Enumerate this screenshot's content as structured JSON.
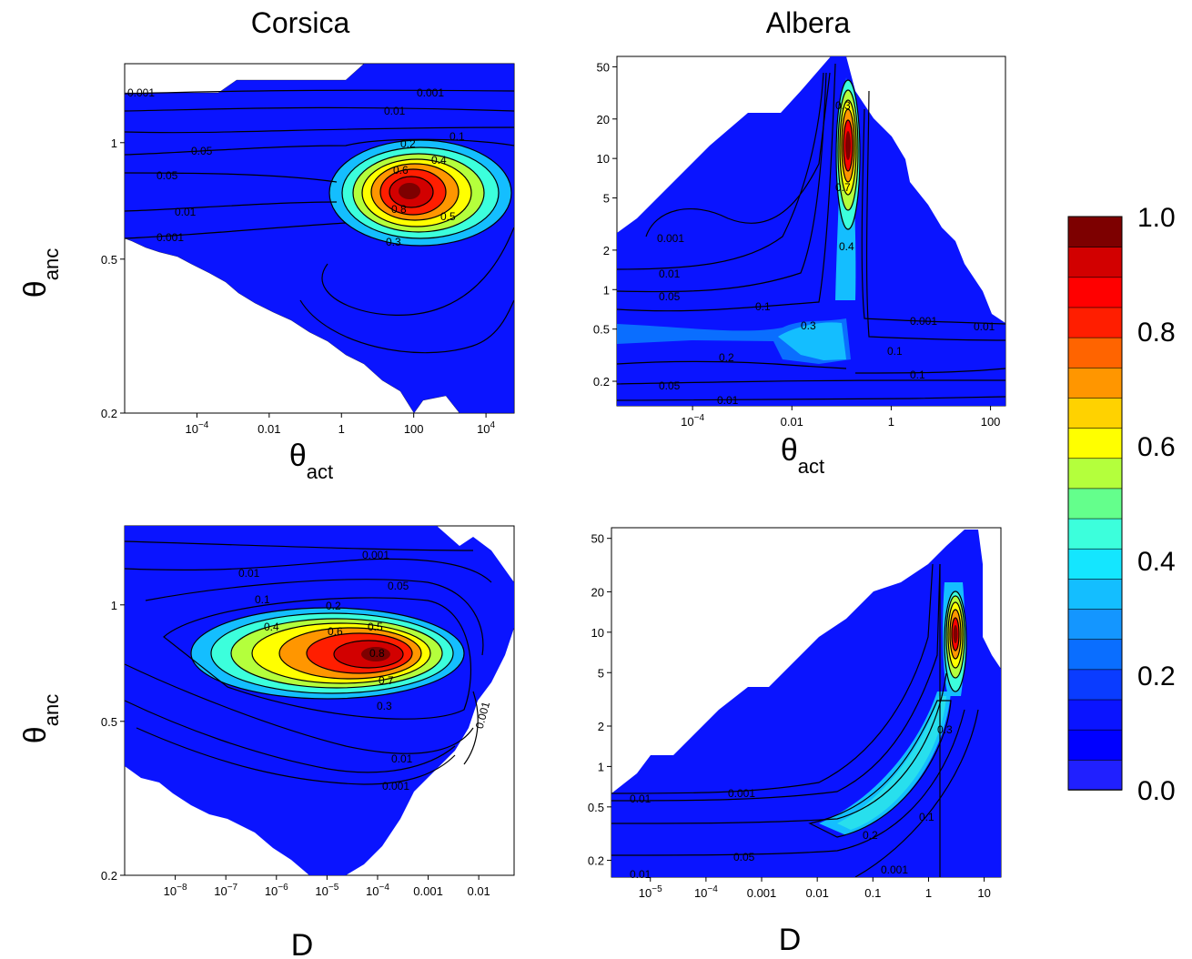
{
  "colors": {
    "colorbar": [
      "#2020ff",
      "#0000ff",
      "#0a14ff",
      "#0a3cff",
      "#0a6eff",
      "#1496ff",
      "#14beff",
      "#14e6ff",
      "#3cffdc",
      "#64ff8c",
      "#b4ff3c",
      "#ffff00",
      "#ffd200",
      "#ff9600",
      "#ff6400",
      "#ff1e00",
      "#ff0000",
      "#d20000",
      "#7d0000"
    ],
    "background_field": "#0a14ff",
    "contour_line": "#000000"
  },
  "colorbar": {
    "labels": [
      "1.0",
      "0.8",
      "0.6",
      "0.4",
      "0.2",
      "0.0"
    ],
    "range": [
      0,
      1
    ]
  },
  "chart_data": [
    {
      "type": "heatmap",
      "title": "Corsica",
      "xlabel_main": "θ",
      "xlabel_sub": "act",
      "ylabel_main": "θ",
      "ylabel_sub": "anc",
      "x_scale": "log",
      "y_scale": "log",
      "xlim": [
        1e-06,
        60000
      ],
      "ylim": [
        0.2,
        1.6
      ],
      "x_ticks": [
        {
          "value": 0.0001,
          "base": "10",
          "exp": "−4"
        },
        {
          "value": 0.01,
          "base": "0.01",
          "exp": ""
        },
        {
          "value": 1,
          "base": "1",
          "exp": ""
        },
        {
          "value": 100,
          "base": "100",
          "exp": ""
        },
        {
          "value": 10000,
          "base": "10",
          "exp": "4"
        }
      ],
      "y_ticks": [
        {
          "value": 0.2,
          "label": "0.2"
        },
        {
          "value": 0.5,
          "label": "0.5"
        },
        {
          "value": 1,
          "label": "1"
        }
      ],
      "peak": {
        "x": 60,
        "y": 0.72,
        "value": 1.0
      },
      "contour_labels": [
        "0.001",
        "0.001",
        "0.01",
        "0.05",
        "0.05",
        "0.01",
        "0.001",
        "0.2",
        "0.1",
        "0.4",
        "0.6",
        "0.8",
        "0.5",
        "0.3"
      ]
    },
    {
      "type": "heatmap",
      "title": "Albera",
      "xlabel_main": "θ",
      "xlabel_sub": "act",
      "ylabel_main": "",
      "ylabel_sub": "",
      "x_scale": "log",
      "y_scale": "log",
      "xlim": [
        3e-06,
        200
      ],
      "ylim": [
        0.13,
        60
      ],
      "x_ticks": [
        {
          "value": 0.0001,
          "base": "10",
          "exp": "−4"
        },
        {
          "value": 0.01,
          "base": "0.01",
          "exp": ""
        },
        {
          "value": 1,
          "base": "1",
          "exp": ""
        },
        {
          "value": 100,
          "base": "100",
          "exp": ""
        }
      ],
      "y_ticks": [
        {
          "value": 0.2,
          "label": "0.2"
        },
        {
          "value": 0.5,
          "label": "0.5"
        },
        {
          "value": 1,
          "label": "1"
        },
        {
          "value": 2,
          "label": "2"
        },
        {
          "value": 5,
          "label": "5"
        },
        {
          "value": 10,
          "label": "10"
        },
        {
          "value": 20,
          "label": "20"
        },
        {
          "value": 50,
          "label": "50"
        }
      ],
      "peak": {
        "x": 0.17,
        "y": 10,
        "value": 1.0
      },
      "contour_labels": [
        "0.001",
        "0.01",
        "0.05",
        "0.1",
        "0.3",
        "0.2",
        "0.05",
        "0.01",
        "0.4",
        "0.7",
        "0.3",
        "0.001",
        "0.01",
        "0.1",
        "0.1"
      ]
    },
    {
      "type": "heatmap",
      "title": "",
      "xlabel_main": "D",
      "xlabel_sub": "",
      "ylabel_main": "θ",
      "ylabel_sub": "anc",
      "x_scale": "log",
      "y_scale": "log",
      "xlim": [
        1e-09,
        0.05
      ],
      "ylim": [
        0.2,
        1.6
      ],
      "x_ticks": [
        {
          "value": 1e-08,
          "base": "10",
          "exp": "−8"
        },
        {
          "value": 1e-07,
          "base": "10",
          "exp": "−7"
        },
        {
          "value": 1e-06,
          "base": "10",
          "exp": "−6"
        },
        {
          "value": 1e-05,
          "base": "10",
          "exp": "−5"
        },
        {
          "value": 0.0001,
          "base": "10",
          "exp": "−4"
        },
        {
          "value": 0.001,
          "base": "0.001",
          "exp": ""
        },
        {
          "value": 0.01,
          "base": "0.01",
          "exp": ""
        }
      ],
      "y_ticks": [
        {
          "value": 0.2,
          "label": "0.2"
        },
        {
          "value": 0.5,
          "label": "0.5"
        },
        {
          "value": 1,
          "label": "1"
        }
      ],
      "peak": {
        "x": 7e-05,
        "y": 0.7,
        "value": 1.0
      },
      "contour_labels": [
        "0.001",
        "0.01",
        "0.05",
        "0.1",
        "0.2",
        "0.4",
        "0.6",
        "0.5",
        "0.8",
        "0.7",
        "0.3",
        "0.01",
        "0.001",
        "0.001"
      ]
    },
    {
      "type": "heatmap",
      "title": "",
      "xlabel_main": "D",
      "xlabel_sub": "",
      "ylabel_main": "",
      "ylabel_sub": "",
      "x_scale": "log",
      "y_scale": "log",
      "xlim": [
        2e-06,
        20
      ],
      "ylim": [
        0.15,
        60
      ],
      "x_ticks": [
        {
          "value": 1e-05,
          "base": "10",
          "exp": "−5"
        },
        {
          "value": 0.0001,
          "base": "10",
          "exp": "−4"
        },
        {
          "value": 0.001,
          "base": "0.001",
          "exp": ""
        },
        {
          "value": 0.01,
          "base": "0.01",
          "exp": ""
        },
        {
          "value": 0.1,
          "base": "0.1",
          "exp": ""
        },
        {
          "value": 1,
          "base": "1",
          "exp": ""
        },
        {
          "value": 10,
          "base": "10",
          "exp": ""
        }
      ],
      "y_ticks": [
        {
          "value": 0.2,
          "label": "0.2"
        },
        {
          "value": 0.5,
          "label": "0.5"
        },
        {
          "value": 1,
          "label": "1"
        },
        {
          "value": 2,
          "label": "2"
        },
        {
          "value": 5,
          "label": "5"
        },
        {
          "value": 10,
          "label": "10"
        },
        {
          "value": 20,
          "label": "20"
        },
        {
          "value": 50,
          "label": "50"
        }
      ],
      "peak": {
        "x": 3.5,
        "y": 10,
        "value": 1.0
      },
      "contour_labels": [
        "0.01",
        "0.001",
        "0.05",
        "0.01",
        "0.2",
        "0.1",
        "0.3",
        "0.001"
      ]
    }
  ]
}
